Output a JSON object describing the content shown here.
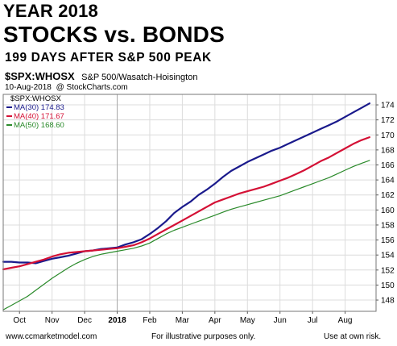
{
  "header": {
    "line1": "YEAR 2018",
    "line2": "STOCKS vs. BONDS",
    "line3": "199 DAYS AFTER S&P 500 PEAK",
    "symbol": "$SPX:WHOSX",
    "symbol_desc": "S&P 500/Wasatch-Hoisington",
    "date": "10-Aug-2018",
    "source": "@ StockCharts.com"
  },
  "footer": {
    "left": "www.ccmarketmodel.com",
    "center": "For illustrative purposes only.",
    "right": "Use at own risk."
  },
  "colors": {
    "ma30": "#1a1a8c",
    "ma40": "#d41035",
    "ma50": "#2a8a2a",
    "grid": "#dcdcdc"
  },
  "chart_data": {
    "type": "line",
    "legend_title": "$SPX:WHOSX",
    "legend_position": "top-left",
    "grid": true,
    "x_range": [
      0,
      11.45
    ],
    "ylim": [
      146.5,
      175.4
    ],
    "yticks": [
      148,
      150,
      152,
      154,
      156,
      158,
      160,
      162,
      164,
      166,
      168,
      170,
      172,
      174
    ],
    "xticks": [
      {
        "label": "Oct",
        "x": 0.5
      },
      {
        "label": "Nov",
        "x": 1.5
      },
      {
        "label": "Dec",
        "x": 2.5
      },
      {
        "label": "2018",
        "x": 3.5
      },
      {
        "label": "Feb",
        "x": 4.5
      },
      {
        "label": "Mar",
        "x": 5.5
      },
      {
        "label": "Apr",
        "x": 6.5
      },
      {
        "label": "May",
        "x": 7.5
      },
      {
        "label": "Jun",
        "x": 8.5
      },
      {
        "label": "Jul",
        "x": 9.5
      },
      {
        "label": "Aug",
        "x": 10.5
      }
    ],
    "year_marker_x": 3.5,
    "x": [
      0,
      0.25,
      0.5,
      0.75,
      1,
      1.25,
      1.5,
      1.75,
      2,
      2.25,
      2.5,
      2.75,
      3,
      3.25,
      3.5,
      3.75,
      4,
      4.25,
      4.5,
      4.75,
      5,
      5.25,
      5.5,
      5.75,
      6,
      6.25,
      6.5,
      6.75,
      7,
      7.25,
      7.5,
      7.75,
      8,
      8.25,
      8.5,
      8.75,
      9,
      9.25,
      9.5,
      9.75,
      10,
      10.25,
      10.5,
      10.75,
      11,
      11.25
    ],
    "series": [
      {
        "name": "MA(30) 174.83",
        "color_key": "ma30",
        "width": 2.2,
        "values": [
          153.1,
          153.1,
          153.0,
          153.0,
          152.9,
          153.2,
          153.5,
          153.7,
          153.9,
          154.2,
          154.5,
          154.6,
          154.8,
          154.9,
          155.0,
          155.4,
          155.7,
          156.1,
          156.8,
          157.6,
          158.5,
          159.6,
          160.4,
          161.1,
          162.0,
          162.7,
          163.5,
          164.4,
          165.2,
          165.8,
          166.4,
          166.9,
          167.4,
          167.9,
          168.3,
          168.8,
          169.3,
          169.8,
          170.3,
          170.8,
          171.3,
          171.8,
          172.4,
          173.0,
          173.6,
          174.2
        ]
      },
      {
        "name": "MA(40) 171.67",
        "color_key": "ma40",
        "width": 2.2,
        "values": [
          152.1,
          152.3,
          152.5,
          152.8,
          153.1,
          153.4,
          153.8,
          154.1,
          154.3,
          154.4,
          154.5,
          154.6,
          154.7,
          154.8,
          154.9,
          155.1,
          155.3,
          155.7,
          156.2,
          156.8,
          157.4,
          158.0,
          158.6,
          159.2,
          159.8,
          160.4,
          161.0,
          161.4,
          161.8,
          162.2,
          162.5,
          162.8,
          163.1,
          163.5,
          163.9,
          164.3,
          164.8,
          165.3,
          165.9,
          166.5,
          167.0,
          167.6,
          168.2,
          168.8,
          169.3,
          169.7
        ]
      },
      {
        "name": "MA(50) 168.60",
        "color_key": "ma50",
        "width": 1.2,
        "values": [
          146.7,
          147.3,
          147.9,
          148.5,
          149.3,
          150.1,
          150.9,
          151.6,
          152.3,
          152.9,
          153.4,
          153.8,
          154.1,
          154.3,
          154.5,
          154.7,
          154.9,
          155.2,
          155.6,
          156.2,
          156.8,
          157.3,
          157.7,
          158.1,
          158.5,
          158.9,
          159.3,
          159.7,
          160.1,
          160.4,
          160.7,
          161.0,
          161.3,
          161.6,
          161.9,
          162.3,
          162.7,
          163.1,
          163.5,
          163.9,
          164.3,
          164.8,
          165.3,
          165.8,
          166.2,
          166.6
        ]
      }
    ]
  }
}
